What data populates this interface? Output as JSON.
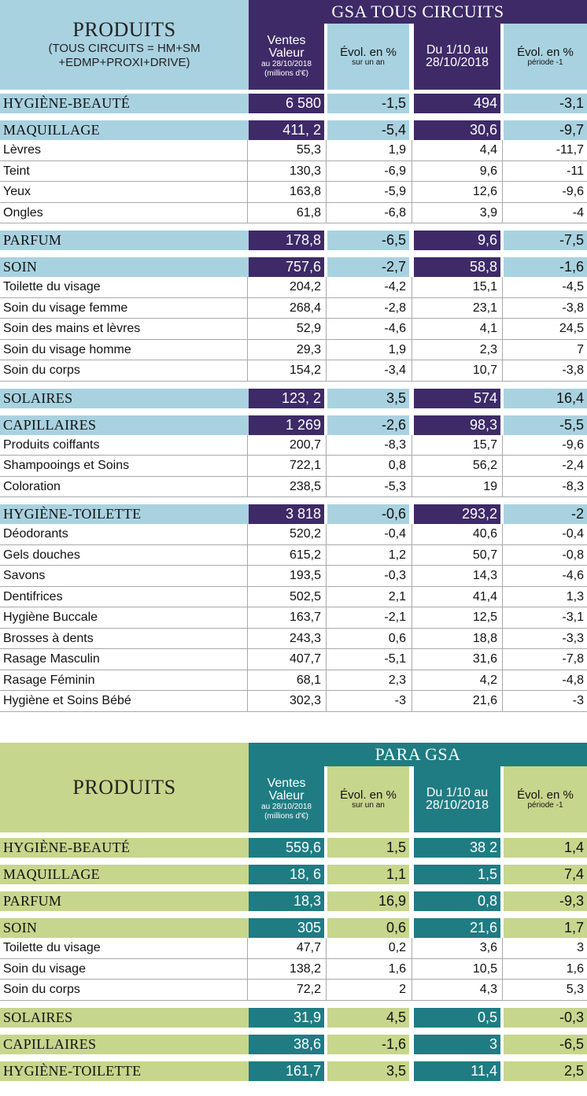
{
  "colors": {
    "gsa_dark": "#3d2a67",
    "gsa_light": "#a9d2e0",
    "para_dark": "#1f7c82",
    "para_light": "#c6d68c"
  },
  "gsa": {
    "title": "PRODUITS",
    "subtitle_1": "(TOUS CIRCUITS = HM+SM",
    "subtitle_2": "+EDMP+PROXI+DRIVE)",
    "banner": "GSA TOUS CIRCUITS",
    "col1_l1": "Ventes",
    "col1_l2": "Valeur",
    "col1_l3": "au 28/10/2018",
    "col1_l4": "(millions d'€)",
    "col2_l1": "Évol. en %",
    "col2_l2": "sur un an",
    "col3_l1": "Du 1/10 au",
    "col3_l2": "28/10/2018",
    "col4_l1": "Évol. en %",
    "col4_l2": "période -1",
    "rows": [
      {
        "type": "cat",
        "label": "HYGIÈNE-BEAUTÉ",
        "v1": "6 580",
        "v2": "-1,5",
        "v3": "494",
        "v4": "-3,1"
      },
      {
        "type": "cat",
        "label": "MAQUILLAGE",
        "v1": "411, 2",
        "v2": "-5,4",
        "v3": "30,6",
        "v4": "-9,7"
      },
      {
        "type": "sub",
        "label": "Lèvres",
        "v1": "55,3",
        "v2": "1,9",
        "v3": "4,4",
        "v4": "-11,7"
      },
      {
        "type": "sub",
        "label": "Teint",
        "v1": "130,3",
        "v2": "-6,9",
        "v3": "9,6",
        "v4": "-11"
      },
      {
        "type": "sub",
        "label": "Yeux",
        "v1": "163,8",
        "v2": "-5,9",
        "v3": "12,6",
        "v4": "-9,6"
      },
      {
        "type": "sub",
        "label": "Ongles",
        "v1": "61,8",
        "v2": "-6,8",
        "v3": "3,9",
        "v4": "-4"
      },
      {
        "type": "cat",
        "label": "PARFUM",
        "v1": "178,8",
        "v2": "-6,5",
        "v3": "9,6",
        "v4": "-7,5"
      },
      {
        "type": "cat",
        "label": "SOIN",
        "v1": "757,6",
        "v2": "-2,7",
        "v3": "58,8",
        "v4": "-1,6"
      },
      {
        "type": "sub",
        "label": "Toilette du visage",
        "v1": "204,2",
        "v2": "-4,2",
        "v3": "15,1",
        "v4": "-4,5"
      },
      {
        "type": "sub",
        "label": "Soin du visage femme",
        "v1": "268,4",
        "v2": "-2,8",
        "v3": "23,1",
        "v4": "-3,8"
      },
      {
        "type": "sub",
        "label": "Soin des mains et lèvres",
        "v1": "52,9",
        "v2": "-4,6",
        "v3": "4,1",
        "v4": "24,5"
      },
      {
        "type": "sub",
        "label": "Soin du visage homme",
        "v1": "29,3",
        "v2": "1,9",
        "v3": "2,3",
        "v4": "7"
      },
      {
        "type": "sub",
        "label": "Soin du corps",
        "v1": "154,2",
        "v2": "-3,4",
        "v3": "10,7",
        "v4": "-3,8"
      },
      {
        "type": "cat",
        "label": "SOLAIRES",
        "v1": "123, 2",
        "v2": "3,5",
        "v3": "574",
        "v4": "16,4"
      },
      {
        "type": "cat",
        "label": "CAPILLAIRES",
        "v1": "1 269",
        "v2": "-2,6",
        "v3": "98,3",
        "v4": "-5,5"
      },
      {
        "type": "sub",
        "label": "Produits coiffants",
        "v1": "200,7",
        "v2": "-8,3",
        "v3": "15,7",
        "v4": "-9,6"
      },
      {
        "type": "sub",
        "label": "Shampooings et Soins",
        "v1": "722,1",
        "v2": "0,8",
        "v3": "56,2",
        "v4": "-2,4"
      },
      {
        "type": "sub",
        "label": "Coloration",
        "v1": "238,5",
        "v2": "-5,3",
        "v3": "19",
        "v4": "-8,3"
      },
      {
        "type": "cat",
        "label": "HYGIÈNE-TOILETTE",
        "v1": "3 818",
        "v2": "-0,6",
        "v3": "293,2",
        "v4": "-2"
      },
      {
        "type": "sub",
        "label": "Déodorants",
        "v1": "520,2",
        "v2": "-0,4",
        "v3": "40,6",
        "v4": "-0,4"
      },
      {
        "type": "sub",
        "label": "Gels douches",
        "v1": "615,2",
        "v2": "1,2",
        "v3": "50,7",
        "v4": "-0,8"
      },
      {
        "type": "sub",
        "label": "Savons",
        "v1": "193,5",
        "v2": "-0,3",
        "v3": "14,3",
        "v4": "-4,6"
      },
      {
        "type": "sub",
        "label": "Dentifrices",
        "v1": "502,5",
        "v2": "2,1",
        "v3": "41,4",
        "v4": "1,3"
      },
      {
        "type": "sub",
        "label": "Hygiène Buccale",
        "v1": "163,7",
        "v2": "-2,1",
        "v3": "12,5",
        "v4": "-3,1"
      },
      {
        "type": "sub",
        "label": "Brosses à dents",
        "v1": "243,3",
        "v2": "0,6",
        "v3": "18,8",
        "v4": "-3,3"
      },
      {
        "type": "sub",
        "label": "Rasage Masculin",
        "v1": "407,7",
        "v2": "-5,1",
        "v3": "31,6",
        "v4": "-7,8"
      },
      {
        "type": "sub",
        "label": "Rasage Féminin",
        "v1": "68,1",
        "v2": "2,3",
        "v3": "4,2",
        "v4": "-4,8"
      },
      {
        "type": "sub",
        "label": "Hygiène et Soins Bébé",
        "v1": "302,3",
        "v2": "-3",
        "v3": "21,6",
        "v4": "-3"
      }
    ]
  },
  "para": {
    "title": "PRODUITS",
    "banner": "PARA GSA",
    "col1_l1": "Ventes",
    "col1_l2": "Valeur",
    "col1_l3": "au 28/10/2018",
    "col1_l4": "(millions d'€)",
    "col2_l1": "Évol. en %",
    "col2_l2": "sur un an",
    "col3_l1": "Du 1/10 au",
    "col3_l2": "28/10/2018",
    "col4_l1": "Évol. en %",
    "col4_l2": "période -1",
    "rows": [
      {
        "type": "cat",
        "label": "HYGIÈNE-BEAUTÉ",
        "v1": "559,6",
        "v2": "1,5",
        "v3": "38 2",
        "v4": "1,4"
      },
      {
        "type": "cat",
        "label": "MAQUILLAGE",
        "v1": "18, 6",
        "v2": "1,1",
        "v3": "1,5",
        "v4": "7,4"
      },
      {
        "type": "cat",
        "label": "PARFUM",
        "v1": "18,3",
        "v2": "16,9",
        "v3": "0,8",
        "v4": "-9,3"
      },
      {
        "type": "cat",
        "label": "SOIN",
        "v1": "305",
        "v2": "0,6",
        "v3": "21,6",
        "v4": "1,7"
      },
      {
        "type": "sub",
        "label": "Toilette du visage",
        "v1": "47,7",
        "v2": "0,2",
        "v3": "3,6",
        "v4": "3"
      },
      {
        "type": "sub",
        "label": "Soin du visage",
        "v1": "138,2",
        "v2": "1,6",
        "v3": "10,5",
        "v4": "1,6"
      },
      {
        "type": "sub",
        "label": "Soin du corps",
        "v1": "72,2",
        "v2": "2",
        "v3": "4,3",
        "v4": "5,3"
      },
      {
        "type": "cat",
        "label": "SOLAIRES",
        "v1": "31,9",
        "v2": "4,5",
        "v3": "0,5",
        "v4": "-0,3"
      },
      {
        "type": "cat",
        "label": "CAPILLAIRES",
        "v1": "38,6",
        "v2": "-1,6",
        "v3": "3",
        "v4": "-6,5"
      },
      {
        "type": "cat",
        "label": "HYGIÈNE-TOILETTE",
        "v1": "161,7",
        "v2": "3,5",
        "v3": "11,4",
        "v4": "2,5"
      }
    ]
  }
}
